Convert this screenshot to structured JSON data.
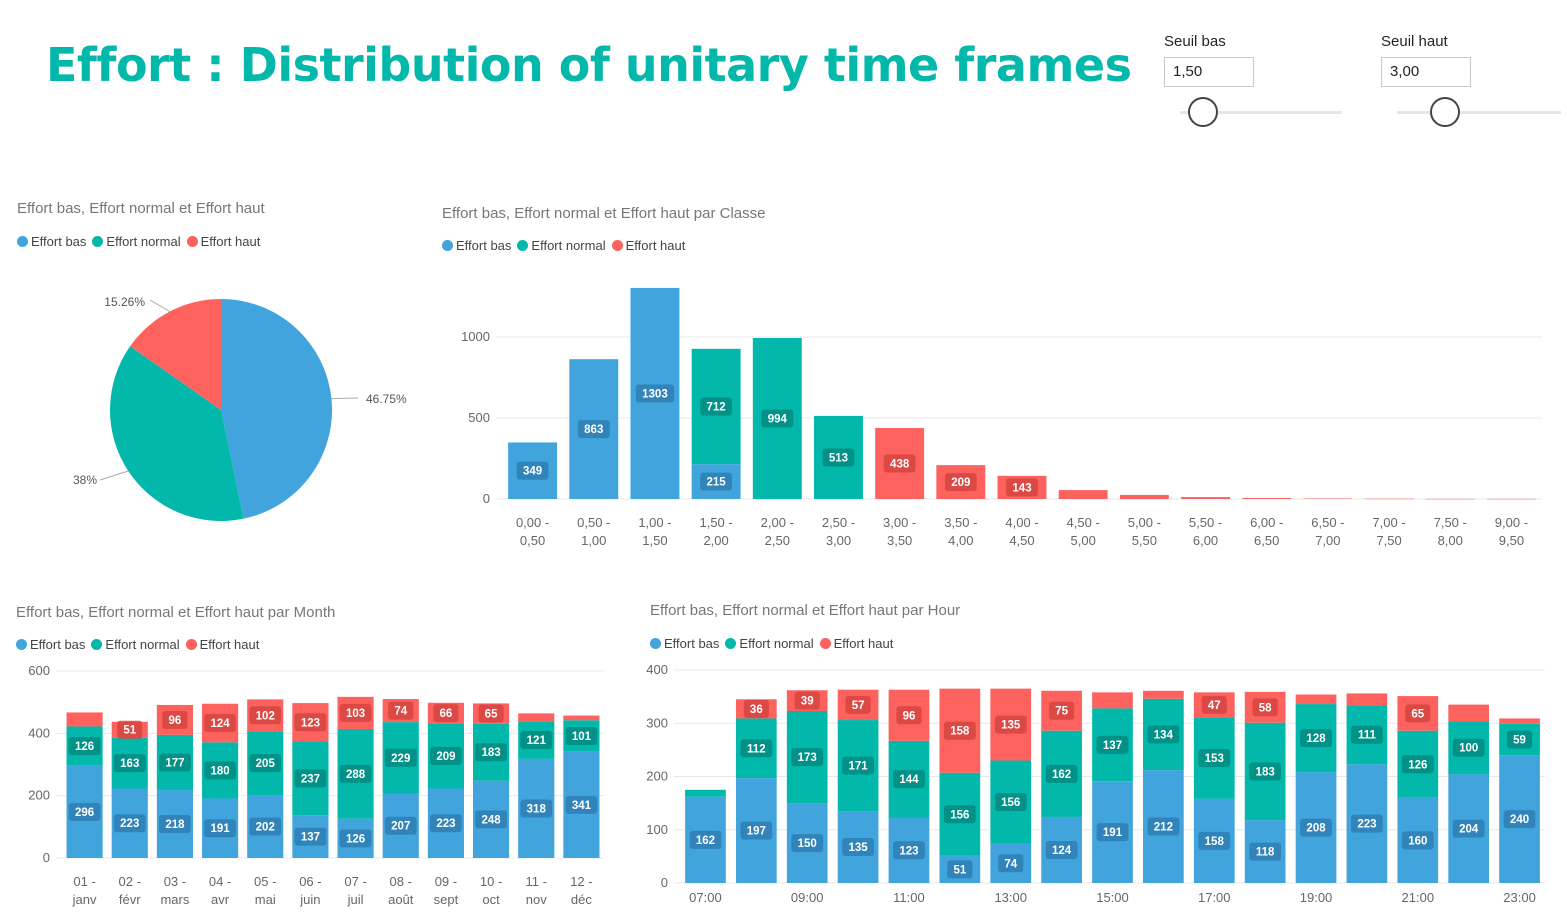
{
  "title": "Effort : Distribution of unitary time frames",
  "slicers": [
    {
      "label": "Seuil bas",
      "value": "1,50",
      "level": 0.1
    },
    {
      "label": "Seuil haut",
      "value": "3,00",
      "level": 0.3
    }
  ],
  "colors": {
    "bas": "#41A4DD",
    "normal": "#01B8AA",
    "haut": "#FD625E"
  },
  "legend_labels": [
    "Effort bas",
    "Effort normal",
    "Effort haut"
  ],
  "chart_data": [
    {
      "type": "pie",
      "title": "Effort bas, Effort normal et Effort haut",
      "slices": [
        {
          "name": "Effort bas",
          "value": 46.75,
          "label": "46.75%"
        },
        {
          "name": "Effort normal",
          "value": 38,
          "label": "38%"
        },
        {
          "name": "Effort haut",
          "value": 15.26,
          "label": "15.26%"
        }
      ],
      "legend": "top-left"
    },
    {
      "type": "bar",
      "stacked": true,
      "title": "Effort bas, Effort normal et Effort haut par Classe",
      "categories": [
        [
          "0,00 -",
          "0,50"
        ],
        [
          "0,50 -",
          "1,00"
        ],
        [
          "1,00 -",
          "1,50"
        ],
        [
          "1,50 -",
          "2,00"
        ],
        [
          "2,00 -",
          "2,50"
        ],
        [
          "2,50 -",
          "3,00"
        ],
        [
          "3,00 -",
          "3,50"
        ],
        [
          "3,50 -",
          "4,00"
        ],
        [
          "4,00 -",
          "4,50"
        ],
        [
          "4,50 -",
          "5,00"
        ],
        [
          "5,00 -",
          "5,50"
        ],
        [
          "5,50 -",
          "6,00"
        ],
        [
          "6,00 -",
          "6,50"
        ],
        [
          "6,50 -",
          "7,00"
        ],
        [
          "7,00 -",
          "7,50"
        ],
        [
          "7,50 -",
          "8,00"
        ],
        [
          "9,00 -",
          "9,50"
        ]
      ],
      "series": [
        {
          "name": "Effort bas",
          "values": [
            349,
            863,
            1303,
            215,
            0,
            0,
            0,
            0,
            0,
            0,
            0,
            0,
            0,
            0,
            0,
            0,
            0
          ]
        },
        {
          "name": "Effort normal",
          "values": [
            0,
            0,
            0,
            712,
            994,
            513,
            0,
            0,
            0,
            0,
            0,
            0,
            0,
            0,
            0,
            0,
            0
          ]
        },
        {
          "name": "Effort haut",
          "values": [
            0,
            0,
            0,
            0,
            0,
            0,
            438,
            209,
            143,
            55,
            25,
            12,
            6,
            3,
            2,
            1,
            1
          ]
        }
      ],
      "labeled": [
        [
          true,
          true,
          true,
          true,
          false,
          false,
          false,
          false,
          false,
          false,
          false,
          false,
          false,
          false,
          false,
          false,
          false
        ],
        [
          false,
          false,
          false,
          true,
          true,
          true,
          false,
          false,
          false,
          false,
          false,
          false,
          false,
          false,
          false,
          false,
          false
        ],
        [
          false,
          false,
          false,
          false,
          false,
          false,
          true,
          true,
          true,
          false,
          false,
          false,
          false,
          false,
          false,
          false,
          false
        ]
      ],
      "yticks": [
        0,
        500,
        1000
      ],
      "ylim": [
        0,
        1350
      ],
      "grid": true,
      "legend": "top-left"
    },
    {
      "type": "bar",
      "stacked": true,
      "title": "Effort bas, Effort normal et Effort haut par Month",
      "categories": [
        [
          "01 -",
          "janv"
        ],
        [
          "02 -",
          "févr"
        ],
        [
          "03 -",
          "mars"
        ],
        [
          "04 -",
          "avr"
        ],
        [
          "05 -",
          "mai"
        ],
        [
          "06 -",
          "juin"
        ],
        [
          "07 -",
          "juil"
        ],
        [
          "08 -",
          "août"
        ],
        [
          "09 -",
          "sept"
        ],
        [
          "10 -",
          "oct"
        ],
        [
          "11 -",
          "nov"
        ],
        [
          "12 -",
          "déc"
        ]
      ],
      "series": [
        {
          "name": "Effort bas",
          "values": [
            296,
            223,
            218,
            191,
            202,
            137,
            126,
            207,
            223,
            248,
            318,
            341
          ]
        },
        {
          "name": "Effort normal",
          "values": [
            126,
            163,
            177,
            180,
            205,
            237,
            288,
            229,
            209,
            183,
            121,
            101
          ]
        },
        {
          "name": "Effort haut",
          "values": [
            45,
            51,
            96,
            124,
            102,
            123,
            103,
            74,
            66,
            65,
            25,
            15
          ]
        }
      ],
      "labeled": [
        [
          true,
          true,
          true,
          true,
          true,
          true,
          true,
          true,
          true,
          true,
          true,
          true
        ],
        [
          true,
          true,
          true,
          true,
          true,
          true,
          true,
          true,
          true,
          true,
          true,
          true
        ],
        [
          false,
          true,
          true,
          true,
          true,
          true,
          true,
          true,
          true,
          true,
          false,
          false
        ]
      ],
      "yticks": [
        0,
        200,
        400,
        600
      ],
      "ylim": [
        0,
        600
      ],
      "grid": true,
      "legend": "top-left"
    },
    {
      "type": "bar",
      "stacked": true,
      "title": "Effort bas, Effort normal et Effort haut par Hour",
      "categories": [
        "07:00",
        "08:00",
        "09:00",
        "10:00",
        "11:00",
        "12:00",
        "13:00",
        "14:00",
        "15:00",
        "16:00",
        "17:00",
        "18:00",
        "19:00",
        "20:00",
        "21:00",
        "22:00",
        "23:00"
      ],
      "tick_labels": [
        "07:00",
        "09:00",
        "11:00",
        "13:00",
        "15:00",
        "17:00",
        "19:00",
        "21:00",
        "23:00"
      ],
      "series": [
        {
          "name": "Effort bas",
          "values": [
            162,
            197,
            150,
            135,
            123,
            51,
            74,
            124,
            191,
            212,
            158,
            118,
            208,
            223,
            160,
            204,
            240
          ]
        },
        {
          "name": "Effort normal",
          "values": [
            13,
            112,
            173,
            171,
            144,
            156,
            156,
            162,
            137,
            134,
            153,
            183,
            128,
            111,
            126,
            100,
            59
          ]
        },
        {
          "name": "Effort haut",
          "values": [
            0,
            36,
            39,
            57,
            96,
            158,
            135,
            75,
            30,
            15,
            47,
            58,
            18,
            22,
            65,
            31,
            10
          ]
        }
      ],
      "labeled": [
        [
          true,
          true,
          true,
          true,
          true,
          true,
          true,
          true,
          true,
          true,
          true,
          true,
          true,
          true,
          true,
          true,
          true
        ],
        [
          false,
          true,
          true,
          true,
          true,
          true,
          true,
          true,
          true,
          true,
          true,
          true,
          true,
          true,
          true,
          true,
          true
        ],
        [
          false,
          true,
          true,
          true,
          true,
          true,
          true,
          true,
          false,
          false,
          true,
          true,
          false,
          false,
          true,
          false,
          false
        ]
      ],
      "yticks": [
        0,
        100,
        200,
        300,
        400
      ],
      "ylim": [
        0,
        400
      ],
      "grid": true,
      "legend": "top-left"
    }
  ]
}
